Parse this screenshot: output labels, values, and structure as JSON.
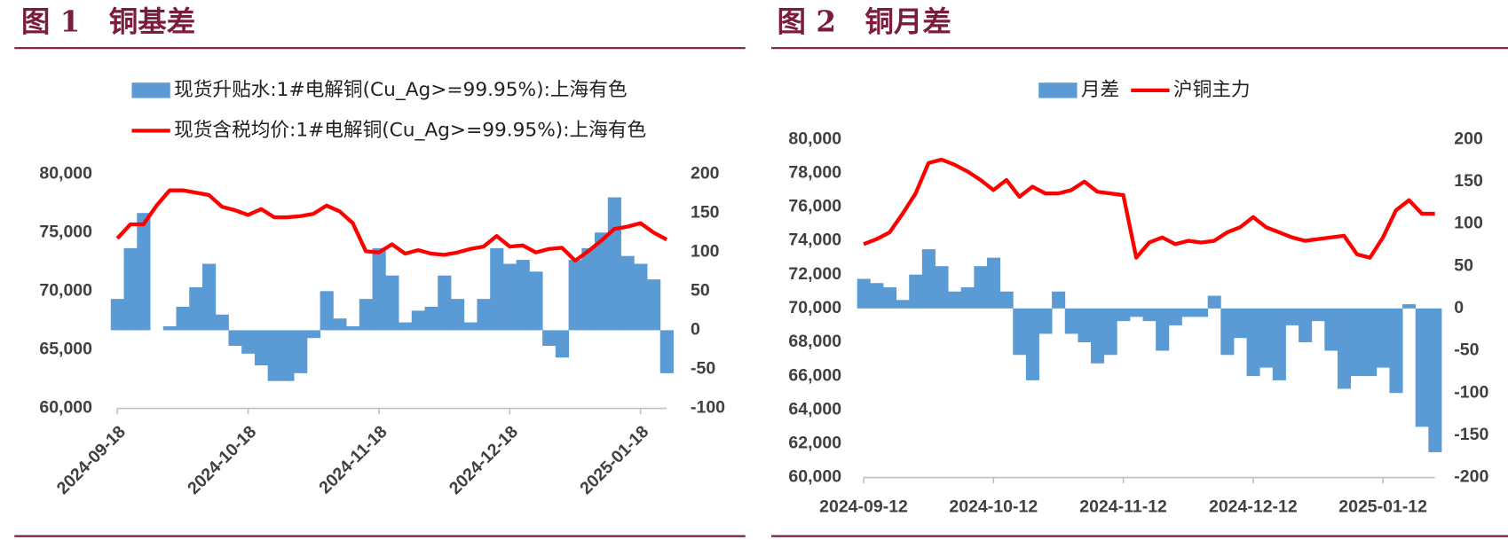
{
  "chart_data": [
    {
      "type": "bar_line",
      "title": "图 1　铜基差",
      "categories": [
        "2024-09-18",
        null,
        null,
        null,
        null,
        null,
        null,
        null,
        null,
        null,
        "2024-10-18",
        null,
        null,
        null,
        null,
        null,
        null,
        null,
        null,
        null,
        "2024-11-18",
        null,
        null,
        null,
        null,
        null,
        null,
        null,
        null,
        null,
        "2024-12-18",
        null,
        null,
        null,
        null,
        null,
        null,
        null,
        null,
        null,
        "2025-01-18",
        null,
        null
      ],
      "series": [
        {
          "name": "现货升贴水:1#电解铜(Cu_Ag>=99.95%):上海有色",
          "type": "bar",
          "axis": "y2",
          "color": "#5b9bd5",
          "values": [
            40,
            105,
            150,
            0,
            5,
            30,
            55,
            85,
            20,
            -20,
            -30,
            -45,
            -65,
            -65,
            -55,
            -10,
            50,
            15,
            5,
            40,
            105,
            70,
            10,
            25,
            30,
            70,
            40,
            10,
            40,
            105,
            85,
            90,
            75,
            -20,
            -35,
            90,
            105,
            125,
            170,
            95,
            85,
            65,
            -55
          ]
        },
        {
          "name": "现货含税均价:1#电解铜(Cu_Ag>=99.95%):上海有色",
          "type": "line",
          "axis": "y",
          "color": "#ff0000",
          "values": [
            74500,
            75700,
            75700,
            77300,
            78600,
            78600,
            78400,
            78200,
            77200,
            76900,
            76500,
            77000,
            76300,
            76300,
            76400,
            76600,
            77300,
            76800,
            75800,
            73400,
            73300,
            74000,
            73200,
            73500,
            73200,
            73100,
            73300,
            73600,
            73800,
            74700,
            73800,
            73900,
            73300,
            73600,
            73700,
            72600,
            73400,
            74300,
            75300,
            75500,
            75800,
            75000,
            74400
          ]
        }
      ],
      "ylim": [
        60000,
        80000
      ],
      "yticks": [
        {
          "value": 60000,
          "label": "60,000"
        },
        {
          "value": 65000,
          "label": "65,000"
        },
        {
          "value": 70000,
          "label": "70,000"
        },
        {
          "value": 75000,
          "label": "75,000"
        },
        {
          "value": 80000,
          "label": "80,000"
        }
      ],
      "y2lim": [
        -100,
        200
      ],
      "y2ticks": [
        -100,
        -50,
        0,
        50,
        100,
        150,
        200
      ]
    },
    {
      "type": "bar_line",
      "title": "图 2　铜月差",
      "categories": [
        "2024-09-12",
        null,
        null,
        null,
        null,
        null,
        null,
        null,
        null,
        null,
        "2024-10-12",
        null,
        null,
        null,
        null,
        null,
        null,
        null,
        null,
        null,
        "2024-11-12",
        null,
        null,
        null,
        null,
        null,
        null,
        null,
        null,
        null,
        "2024-12-12",
        null,
        null,
        null,
        null,
        null,
        null,
        null,
        null,
        null,
        "2025-01-12",
        null,
        null,
        null,
        null
      ],
      "series": [
        {
          "name": "月差",
          "type": "bar",
          "axis": "y2",
          "color": "#5b9bd5",
          "values": [
            35,
            30,
            25,
            10,
            40,
            70,
            50,
            20,
            25,
            50,
            60,
            20,
            -55,
            -85,
            -30,
            20,
            -30,
            -40,
            -65,
            -55,
            -15,
            -10,
            -15,
            -50,
            -20,
            -10,
            -10,
            15,
            -55,
            -35,
            -80,
            -70,
            -85,
            -20,
            -40,
            -15,
            -50,
            -95,
            -80,
            -80,
            -70,
            -100,
            5,
            -140,
            -170
          ]
        },
        {
          "name": "沪铜主力",
          "type": "line",
          "axis": "y",
          "color": "#ff0000",
          "values": [
            73800,
            74100,
            74500,
            75600,
            76800,
            78600,
            78800,
            78500,
            78100,
            77600,
            77000,
            77600,
            76600,
            77200,
            76800,
            76800,
            77000,
            77500,
            76900,
            76800,
            76700,
            73000,
            73900,
            74200,
            73800,
            74000,
            73900,
            74000,
            74500,
            74800,
            75400,
            74800,
            74500,
            74200,
            74000,
            74100,
            74200,
            74300,
            73200,
            73000,
            74200,
            75800,
            76400,
            75600,
            75600
          ]
        }
      ],
      "ylim": [
        60000,
        80000
      ],
      "yticks": [
        {
          "value": 60000,
          "label": "60,000"
        },
        {
          "value": 62000,
          "label": "62,000"
        },
        {
          "value": 64000,
          "label": "64,000"
        },
        {
          "value": 66000,
          "label": "66,000"
        },
        {
          "value": 68000,
          "label": "68,000"
        },
        {
          "value": 70000,
          "label": "70,000"
        },
        {
          "value": 72000,
          "label": "72,000"
        },
        {
          "value": 74000,
          "label": "74,000"
        },
        {
          "value": 76000,
          "label": "76,000"
        },
        {
          "value": 78000,
          "label": "78,000"
        },
        {
          "value": 80000,
          "label": "80,000"
        }
      ],
      "y2lim": [
        -200,
        200
      ],
      "y2ticks": [
        -200,
        -150,
        -100,
        -50,
        0,
        50,
        100,
        150,
        200
      ]
    }
  ]
}
